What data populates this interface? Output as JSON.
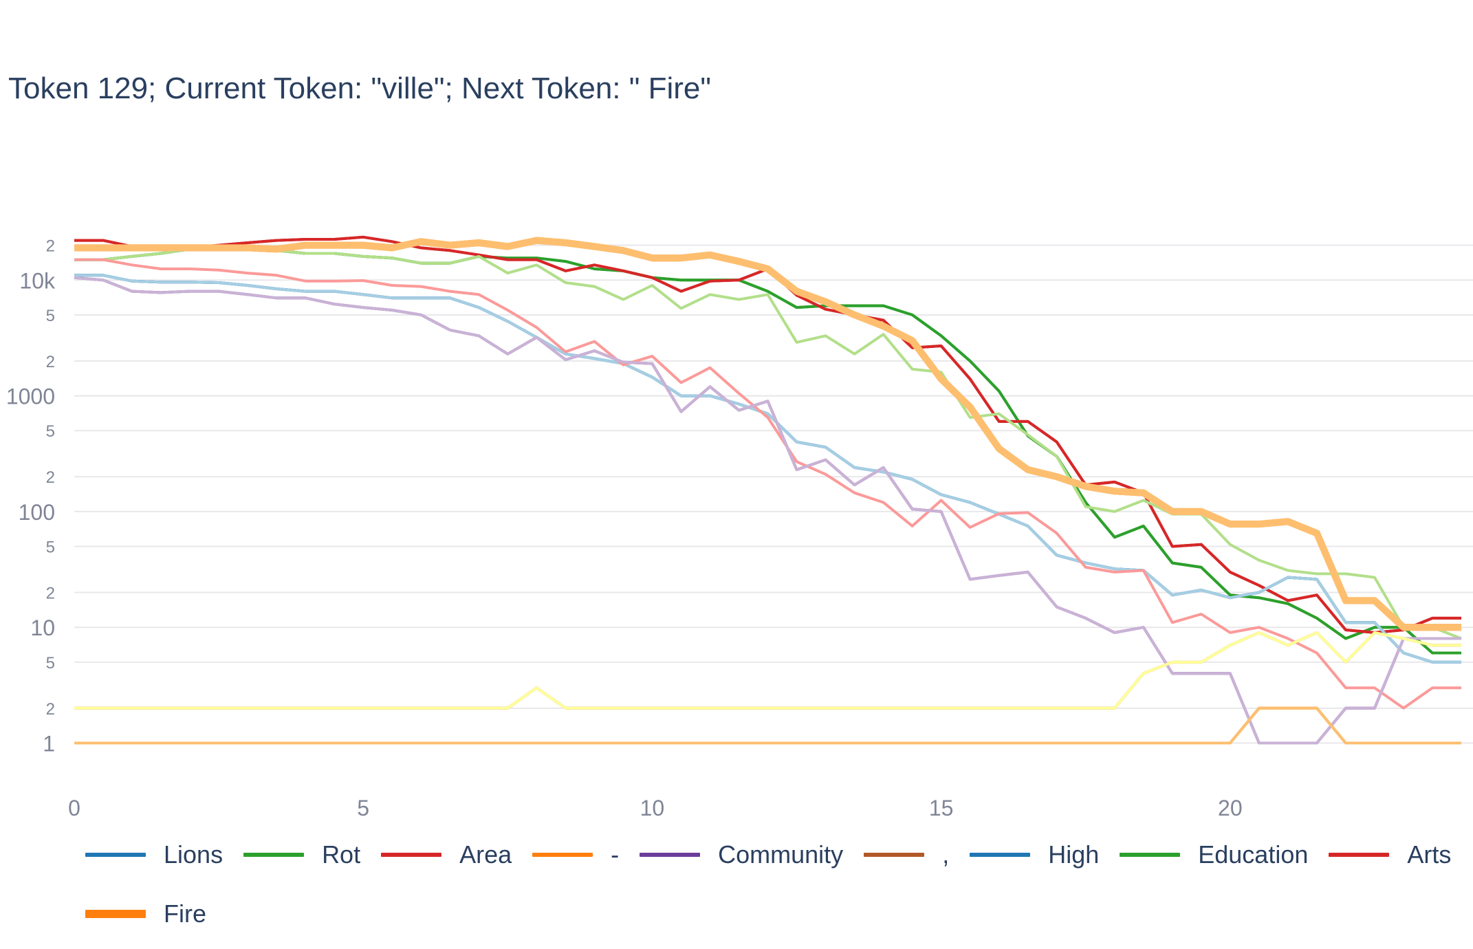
{
  "title": "Token 129; Current Token: \"ville\"; Next Token: \" Fire\"",
  "colors": {
    "blue": "#1f77b4",
    "green": "#2ca02c",
    "red": "#d62728",
    "orange": "#ff7f0e",
    "purple": "#6a3d9a",
    "brown": "#b15928",
    "light_blue": "#a6cee3",
    "light_green": "#b2df8a",
    "light_red": "#fb9a99",
    "light_orange": "#fdbf6f",
    "light_purple": "#cab2d6",
    "light_yellow": "#ffff99",
    "grid": "#e8e8ec",
    "tick_text": "#7f8596",
    "title_text": "#2a3f5f"
  },
  "chart_data": {
    "type": "line",
    "title": "Token 129; Current Token: \"ville\"; Next Token: \" Fire\"",
    "xlabel": "",
    "ylabel": "",
    "y_scale": "log",
    "xlim": [
      0,
      24
    ],
    "ylim": [
      0.65,
      33000
    ],
    "x_ticks": [
      0,
      5,
      10,
      15,
      20
    ],
    "x_tick_labels": [
      "0",
      "5",
      "10",
      "15",
      "20"
    ],
    "y_major_ticks": [
      1,
      10,
      100,
      1000,
      10000
    ],
    "y_major_labels": [
      "1",
      "10",
      "100",
      "1000",
      "10k"
    ],
    "y_minor_ticks": [
      2,
      5,
      20,
      50,
      200,
      500,
      2000,
      5000,
      20000
    ],
    "y_minor_labels": [
      "2",
      "5",
      "2",
      "5",
      "2",
      "5",
      "2",
      "5",
      "2"
    ],
    "grid": true,
    "legend_position": "bottom",
    "x": [
      0,
      0.5,
      1,
      1.5,
      2,
      2.5,
      3,
      3.5,
      4,
      4.5,
      5,
      5.5,
      6,
      6.5,
      7,
      7.5,
      8,
      8.5,
      9,
      9.5,
      10,
      10.5,
      11,
      11.5,
      12,
      12.5,
      13,
      13.5,
      14,
      14.5,
      15,
      15.5,
      16,
      16.5,
      17,
      17.5,
      18,
      18.5,
      19,
      19.5,
      20,
      20.5,
      21,
      21.5,
      22,
      22.5,
      23,
      23.5,
      24
    ],
    "series": [
      {
        "name": "Lions",
        "color": "blue",
        "width": 4,
        "values": [
          11000,
          11000,
          9800,
          9600,
          9600,
          9500,
          9000,
          8400,
          8000,
          8000,
          7500,
          7000,
          7000,
          7000,
          5800,
          4400,
          3200,
          2300,
          2100,
          1900,
          1450,
          1000,
          1000,
          850,
          700,
          400,
          360,
          240,
          220,
          190,
          140,
          120,
          95,
          75,
          42,
          36,
          32,
          31,
          19,
          21,
          18,
          20,
          27,
          26,
          11,
          11,
          6,
          5,
          5
        ]
      },
      {
        "name": "Rot",
        "color": "green",
        "width": 4,
        "values": [
          15000,
          15000,
          16000,
          17000,
          18500,
          19000,
          18500,
          18000,
          17000,
          17000,
          16000,
          15500,
          14000,
          14000,
          16000,
          15500,
          15500,
          14500,
          12500,
          12000,
          10500,
          10000,
          10000,
          10000,
          8000,
          5800,
          6000,
          6000,
          6000,
          5000,
          3300,
          2000,
          1100,
          450,
          300,
          120,
          60,
          75,
          36,
          33,
          19,
          18,
          16,
          12,
          8,
          10,
          10,
          6,
          6
        ]
      },
      {
        "name": "Area",
        "color": "red",
        "width": 4,
        "values": [
          22000,
          22000,
          19500,
          19000,
          19000,
          20000,
          21000,
          22000,
          22500,
          22500,
          23500,
          21500,
          19000,
          18000,
          16500,
          15000,
          15000,
          12000,
          13500,
          12000,
          10500,
          8000,
          9800,
          10000,
          12500,
          7400,
          5600,
          5000,
          4500,
          2600,
          2700,
          1400,
          600,
          600,
          400,
          170,
          180,
          145,
          50,
          52,
          30,
          23,
          17,
          19,
          9.5,
          9,
          9.5,
          12,
          12
        ]
      },
      {
        "name": "-",
        "color": "orange",
        "width": 4,
        "values": [
          1,
          1,
          1,
          1,
          1,
          1,
          1,
          1,
          1,
          1,
          1,
          1,
          1,
          1,
          1,
          1,
          1,
          1,
          1,
          1,
          1,
          1,
          1,
          1,
          1,
          1,
          1,
          1,
          1,
          1,
          1,
          1,
          1,
          1,
          1,
          1,
          1,
          1,
          1,
          1,
          1,
          2,
          2,
          2,
          1,
          1,
          1,
          1,
          1
        ]
      },
      {
        "name": "Community",
        "color": "purple",
        "width": 4,
        "values": [
          10500,
          10000,
          8000,
          7800,
          8000,
          8000,
          7500,
          7000,
          7000,
          6200,
          5800,
          5500,
          5000,
          3700,
          3300,
          2300,
          3200,
          2050,
          2450,
          1950,
          1900,
          730,
          1200,
          750,
          900,
          230,
          280,
          170,
          240,
          105,
          100,
          26,
          28,
          30,
          15,
          12,
          9,
          10,
          4,
          4,
          4,
          1,
          1,
          1,
          2,
          2,
          8,
          8,
          8
        ]
      },
      {
        "name": ",",
        "color": "brown",
        "width": 4,
        "values": [
          2,
          2,
          2,
          2,
          2,
          2,
          2,
          2,
          2,
          2,
          2,
          2,
          2,
          2,
          2,
          2,
          3,
          2,
          2,
          2,
          2,
          2,
          2,
          2,
          2,
          2,
          2,
          2,
          2,
          2,
          2,
          2,
          2,
          2,
          2,
          2,
          2,
          4,
          5,
          5,
          7,
          9,
          7,
          9,
          5,
          9,
          8,
          7,
          7
        ]
      },
      {
        "name": "High",
        "color": "blue",
        "width": 4,
        "values": [
          11000,
          11000,
          9800,
          9600,
          9600,
          9500,
          9000,
          8400,
          8000,
          8000,
          7500,
          7000,
          7000,
          7000,
          5800,
          4400,
          3200,
          2300,
          2100,
          1900,
          1450,
          1000,
          1000,
          850,
          700,
          400,
          360,
          240,
          220,
          190,
          140,
          120,
          95,
          75,
          42,
          36,
          32,
          31,
          19,
          21,
          18,
          20,
          27,
          26,
          11,
          11,
          6,
          5,
          5
        ]
      },
      {
        "name": "Education",
        "color": "green",
        "width": 4,
        "values": [
          15000,
          15000,
          16000,
          17000,
          18500,
          19000,
          18500,
          18000,
          17000,
          17000,
          16000,
          15500,
          14000,
          14000,
          16000,
          15500,
          15500,
          14500,
          12500,
          12000,
          10500,
          10000,
          10000,
          10000,
          8000,
          5800,
          6000,
          6000,
          6000,
          5000,
          3300,
          2000,
          1100,
          450,
          300,
          120,
          60,
          75,
          36,
          33,
          19,
          18,
          16,
          12,
          8,
          10,
          10,
          6,
          6
        ]
      },
      {
        "name": "Arts",
        "color": "red",
        "width": 4,
        "values": [
          22000,
          22000,
          19500,
          19000,
          19000,
          20000,
          21000,
          22000,
          22500,
          22500,
          23500,
          21500,
          19000,
          18000,
          16500,
          15000,
          15000,
          12000,
          13500,
          12000,
          10500,
          8000,
          9800,
          10000,
          12500,
          7400,
          5600,
          5000,
          4500,
          2600,
          2700,
          1400,
          600,
          600,
          400,
          170,
          180,
          145,
          50,
          52,
          30,
          23,
          17,
          19,
          9.5,
          9,
          9.5,
          12,
          12
        ]
      },
      {
        "name": "Fire",
        "color": "orange",
        "width": 10,
        "values": [
          19000,
          19000,
          19000,
          19000,
          19000,
          19000,
          19000,
          18500,
          20000,
          20000,
          20000,
          19000,
          21500,
          20000,
          21000,
          19500,
          22000,
          21000,
          19500,
          18000,
          15500,
          15500,
          16500,
          14500,
          12500,
          8000,
          6500,
          5000,
          4000,
          3000,
          1400,
          800,
          350,
          230,
          200,
          165,
          150,
          145,
          100,
          100,
          78,
          78,
          82,
          65,
          17,
          17,
          10,
          10,
          10
        ]
      },
      {
        "name": "",
        "color": "light_blue",
        "width": 4,
        "values": [
          11000,
          11000,
          9800,
          9600,
          9600,
          9500,
          9000,
          8400,
          8000,
          8000,
          7500,
          7000,
          7000,
          7000,
          5800,
          4400,
          3200,
          2300,
          2100,
          1900,
          1450,
          1000,
          1000,
          850,
          700,
          400,
          360,
          240,
          220,
          190,
          140,
          120,
          95,
          75,
          42,
          36,
          32,
          31,
          19,
          21,
          18,
          20,
          27,
          26,
          11,
          11,
          6,
          5,
          5
        ]
      },
      {
        "name": "",
        "color": "light_green",
        "width": 4,
        "values": [
          15000,
          15000,
          16000,
          17000,
          18500,
          19000,
          18500,
          18000,
          17000,
          17000,
          16000,
          15500,
          14000,
          14000,
          16000,
          11500,
          13500,
          9500,
          8800,
          6800,
          9000,
          5700,
          7500,
          6800,
          7500,
          2900,
          3300,
          2300,
          3400,
          1700,
          1600,
          650,
          700,
          460,
          300,
          110,
          100,
          125,
          95,
          95,
          52,
          38,
          31,
          29,
          29,
          27,
          10,
          10,
          8
        ]
      },
      {
        "name": "",
        "color": "light_red",
        "width": 4,
        "values": [
          15000,
          15000,
          13500,
          12500,
          12500,
          12200,
          11500,
          11000,
          9800,
          9800,
          9900,
          9000,
          8800,
          8000,
          7500,
          5500,
          3900,
          2400,
          2950,
          1850,
          2200,
          1300,
          1750,
          1050,
          650,
          270,
          210,
          145,
          120,
          75,
          125,
          73,
          96,
          98,
          65,
          33,
          30,
          31,
          11,
          13,
          9,
          10,
          8,
          6,
          3,
          3,
          2,
          3,
          3
        ]
      },
      {
        "name": "",
        "color": "light_orange",
        "width": 10,
        "values": [
          19000,
          19000,
          19000,
          19000,
          19000,
          19000,
          19000,
          18500,
          20000,
          20000,
          20000,
          19000,
          21500,
          20000,
          21000,
          19500,
          22000,
          21000,
          19500,
          18000,
          15500,
          15500,
          16500,
          14500,
          12500,
          8000,
          6500,
          5000,
          4000,
          3000,
          1400,
          800,
          350,
          230,
          200,
          165,
          150,
          145,
          100,
          100,
          78,
          78,
          82,
          65,
          17,
          17,
          10,
          10,
          10
        ]
      },
      {
        "name": "",
        "color": "light_purple",
        "width": 4,
        "values": [
          10500,
          10000,
          8000,
          7800,
          8000,
          8000,
          7500,
          7000,
          7000,
          6200,
          5800,
          5500,
          5000,
          3700,
          3300,
          2300,
          3200,
          2050,
          2450,
          1950,
          1900,
          730,
          1200,
          750,
          900,
          230,
          280,
          170,
          240,
          105,
          100,
          26,
          28,
          30,
          15,
          12,
          9,
          10,
          4,
          4,
          4,
          1,
          1,
          1,
          2,
          2,
          8,
          8,
          8
        ]
      },
      {
        "name": "",
        "color": "light_yellow",
        "width": 4,
        "values": [
          2,
          2,
          2,
          2,
          2,
          2,
          2,
          2,
          2,
          2,
          2,
          2,
          2,
          2,
          2,
          2,
          3,
          2,
          2,
          2,
          2,
          2,
          2,
          2,
          2,
          2,
          2,
          2,
          2,
          2,
          2,
          2,
          2,
          2,
          2,
          2,
          2,
          4,
          5,
          5,
          7,
          9,
          7,
          9,
          5,
          9,
          8,
          7,
          7
        ]
      },
      {
        "name": "",
        "color": "light_orange",
        "width": 4,
        "values": [
          1,
          1,
          1,
          1,
          1,
          1,
          1,
          1,
          1,
          1,
          1,
          1,
          1,
          1,
          1,
          1,
          1,
          1,
          1,
          1,
          1,
          1,
          1,
          1,
          1,
          1,
          1,
          1,
          1,
          1,
          1,
          1,
          1,
          1,
          1,
          1,
          1,
          1,
          1,
          1,
          1,
          2,
          2,
          2,
          1,
          1,
          1,
          1,
          1
        ]
      }
    ],
    "legend": [
      {
        "label": "Lions",
        "color": "blue",
        "width": 6
      },
      {
        "label": "Rot",
        "color": "green",
        "width": 6
      },
      {
        "label": "Area",
        "color": "red",
        "width": 6
      },
      {
        "label": "-",
        "color": "orange",
        "width": 6
      },
      {
        "label": "Community",
        "color": "purple",
        "width": 6
      },
      {
        "label": ",",
        "color": "brown",
        "width": 6
      },
      {
        "label": "High",
        "color": "blue",
        "width": 6
      },
      {
        "label": "Education",
        "color": "green",
        "width": 6
      },
      {
        "label": "Arts",
        "color": "red",
        "width": 6
      },
      {
        "label": "Fire",
        "color": "orange",
        "width": 12
      }
    ]
  }
}
